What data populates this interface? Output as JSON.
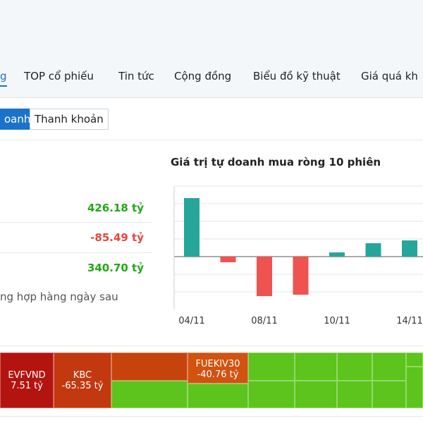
{
  "tabs": [
    "g",
    "TOP cổ phiếu",
    "Tin tức",
    "Cộng đồng",
    "Biểu đồ kỹ thuật",
    "Giá quá kh"
  ],
  "buttons": [
    "oanh",
    "Thanh khoản"
  ],
  "summary": {
    "values": [
      "426.18 tỷ",
      "-85.49 tỷ",
      "340.70 tỷ"
    ],
    "note": "ng hợp hàng ngày sau"
  },
  "chart_data": {
    "type": "bar",
    "title": "Giá trị tự doanh mua ròng 10 phiên",
    "categories": [
      "04/11",
      null,
      "08/11",
      null,
      "10/11",
      null,
      "14/11"
    ],
    "values": [
      83,
      -8,
      -56,
      -54,
      6,
      19,
      23
    ],
    "ylim": [
      -75,
      100
    ],
    "yticks": [
      -50,
      -25,
      0,
      25,
      50,
      75,
      100
    ],
    "grid": true,
    "positive_color": "#26a69a",
    "negative_color": "#ef5350"
  },
  "treemap": {
    "cells": [
      {
        "name": "EVFVND",
        "value": "7.51 tỷ"
      },
      {
        "name": "KBC",
        "value": "-65.35 tỷ"
      },
      {
        "name": "FUEKIV30",
        "value": "-40.76 tỷ"
      }
    ]
  }
}
